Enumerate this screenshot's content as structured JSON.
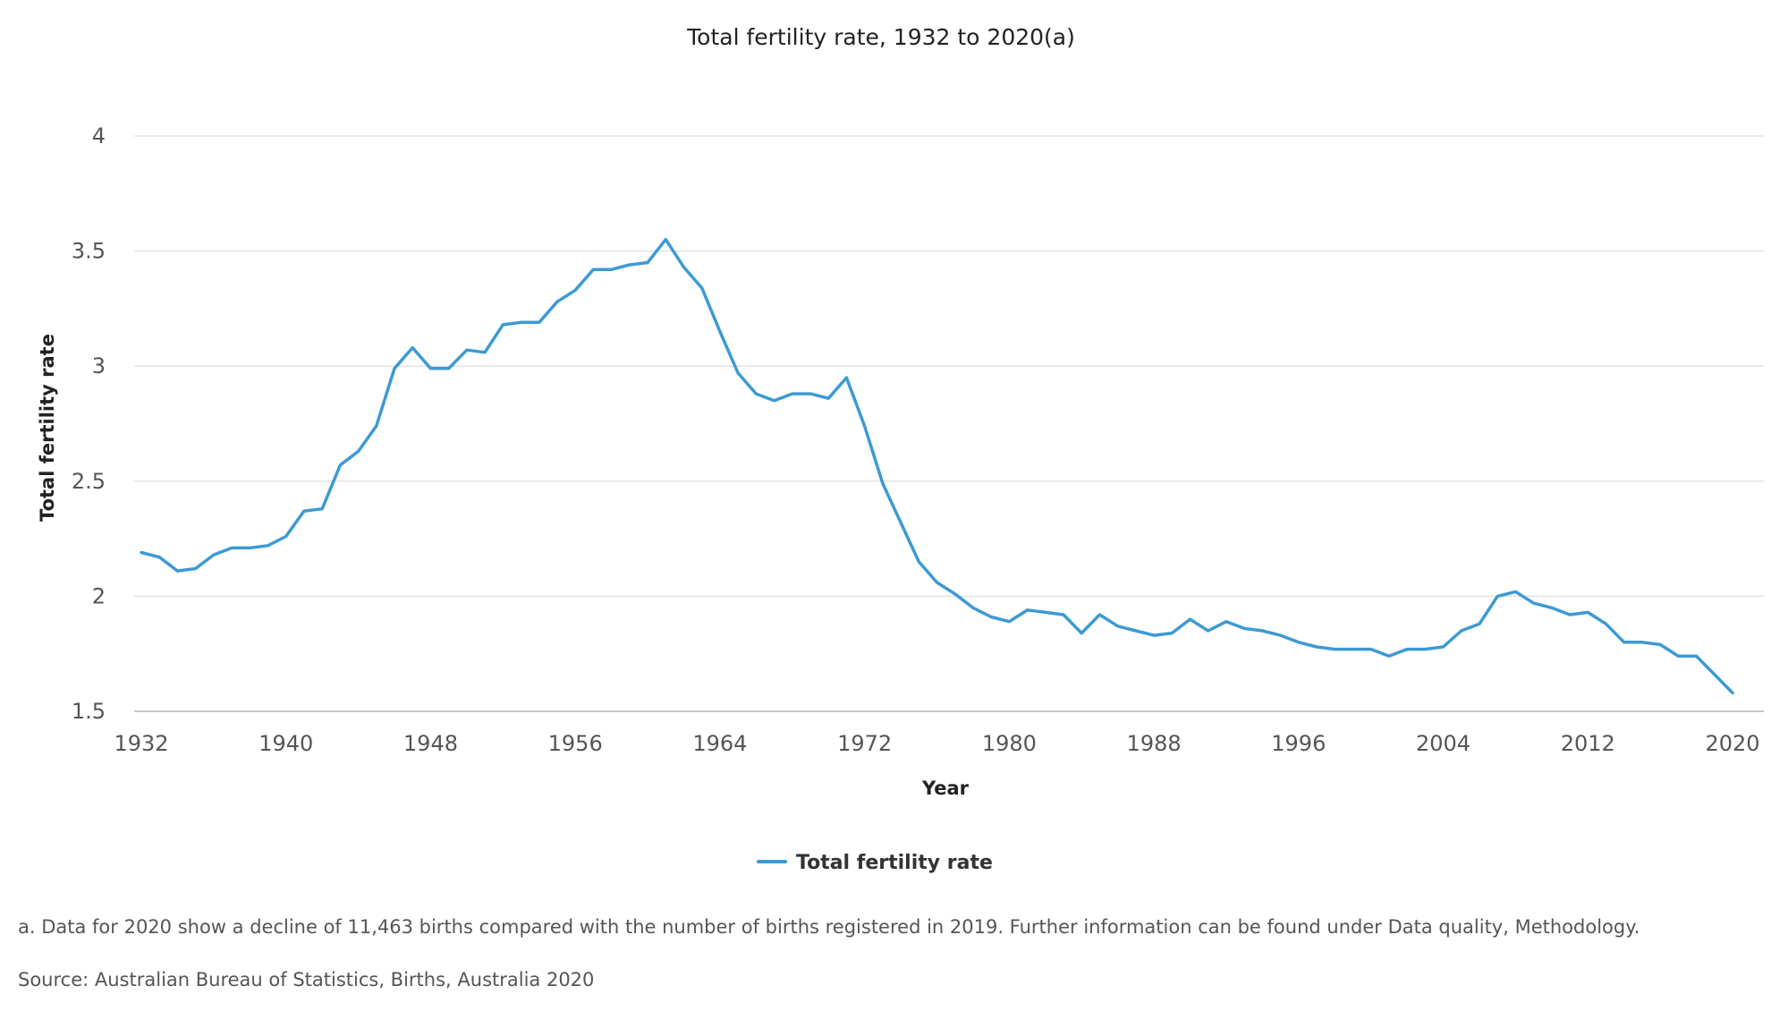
{
  "chart_data": {
    "type": "line",
    "title": "Total fertility rate, 1932 to 2020(a)",
    "xlabel": "Year",
    "ylabel": "Total fertility rate",
    "xlim": [
      1932,
      2020
    ],
    "ylim": [
      1.5,
      4
    ],
    "x_ticks": [
      1932,
      1940,
      1948,
      1956,
      1964,
      1972,
      1980,
      1988,
      1996,
      2004,
      2012,
      2020
    ],
    "y_ticks": [
      1.5,
      2,
      2.5,
      3,
      3.5,
      4
    ],
    "grid": true,
    "legend_position": "bottom-center",
    "series": [
      {
        "name": "Total fertility rate",
        "color": "#3c9ad3",
        "x": [
          1932,
          1933,
          1934,
          1935,
          1936,
          1937,
          1938,
          1939,
          1940,
          1941,
          1942,
          1943,
          1944,
          1945,
          1946,
          1947,
          1948,
          1949,
          1950,
          1951,
          1952,
          1953,
          1954,
          1955,
          1956,
          1957,
          1958,
          1959,
          1960,
          1961,
          1962,
          1963,
          1964,
          1965,
          1966,
          1967,
          1968,
          1969,
          1970,
          1971,
          1972,
          1973,
          1974,
          1975,
          1976,
          1977,
          1978,
          1979,
          1980,
          1981,
          1982,
          1983,
          1984,
          1985,
          1986,
          1987,
          1988,
          1989,
          1990,
          1991,
          1992,
          1993,
          1994,
          1995,
          1996,
          1997,
          1998,
          1999,
          2000,
          2001,
          2002,
          2003,
          2004,
          2005,
          2006,
          2007,
          2008,
          2009,
          2010,
          2011,
          2012,
          2013,
          2014,
          2015,
          2016,
          2017,
          2018,
          2019,
          2020
        ],
        "values": [
          2.19,
          2.17,
          2.11,
          2.12,
          2.18,
          2.21,
          2.21,
          2.22,
          2.26,
          2.37,
          2.38,
          2.57,
          2.63,
          2.74,
          2.99,
          3.08,
          2.99,
          2.99,
          3.07,
          3.06,
          3.18,
          3.19,
          3.19,
          3.28,
          3.33,
          3.42,
          3.42,
          3.44,
          3.45,
          3.55,
          3.43,
          3.34,
          3.15,
          2.97,
          2.88,
          2.85,
          2.88,
          2.88,
          2.86,
          2.95,
          2.74,
          2.49,
          2.32,
          2.15,
          2.06,
          2.01,
          1.95,
          1.91,
          1.89,
          1.94,
          1.93,
          1.92,
          1.84,
          1.92,
          1.87,
          1.85,
          1.83,
          1.84,
          1.9,
          1.85,
          1.89,
          1.86,
          1.85,
          1.83,
          1.8,
          1.78,
          1.77,
          1.77,
          1.77,
          1.74,
          1.77,
          1.77,
          1.78,
          1.85,
          1.88,
          2.0,
          2.02,
          1.97,
          1.95,
          1.92,
          1.93,
          1.88,
          1.8,
          1.8,
          1.79,
          1.74,
          1.74,
          1.66,
          1.58
        ]
      }
    ]
  },
  "footnote": "a. Data for 2020 show a decline of 11,463 births compared with the number of births registered in 2019. Further information can be found under Data quality, Methodology.",
  "source": "Source: Australian Bureau of Statistics, Births, Australia 2020"
}
